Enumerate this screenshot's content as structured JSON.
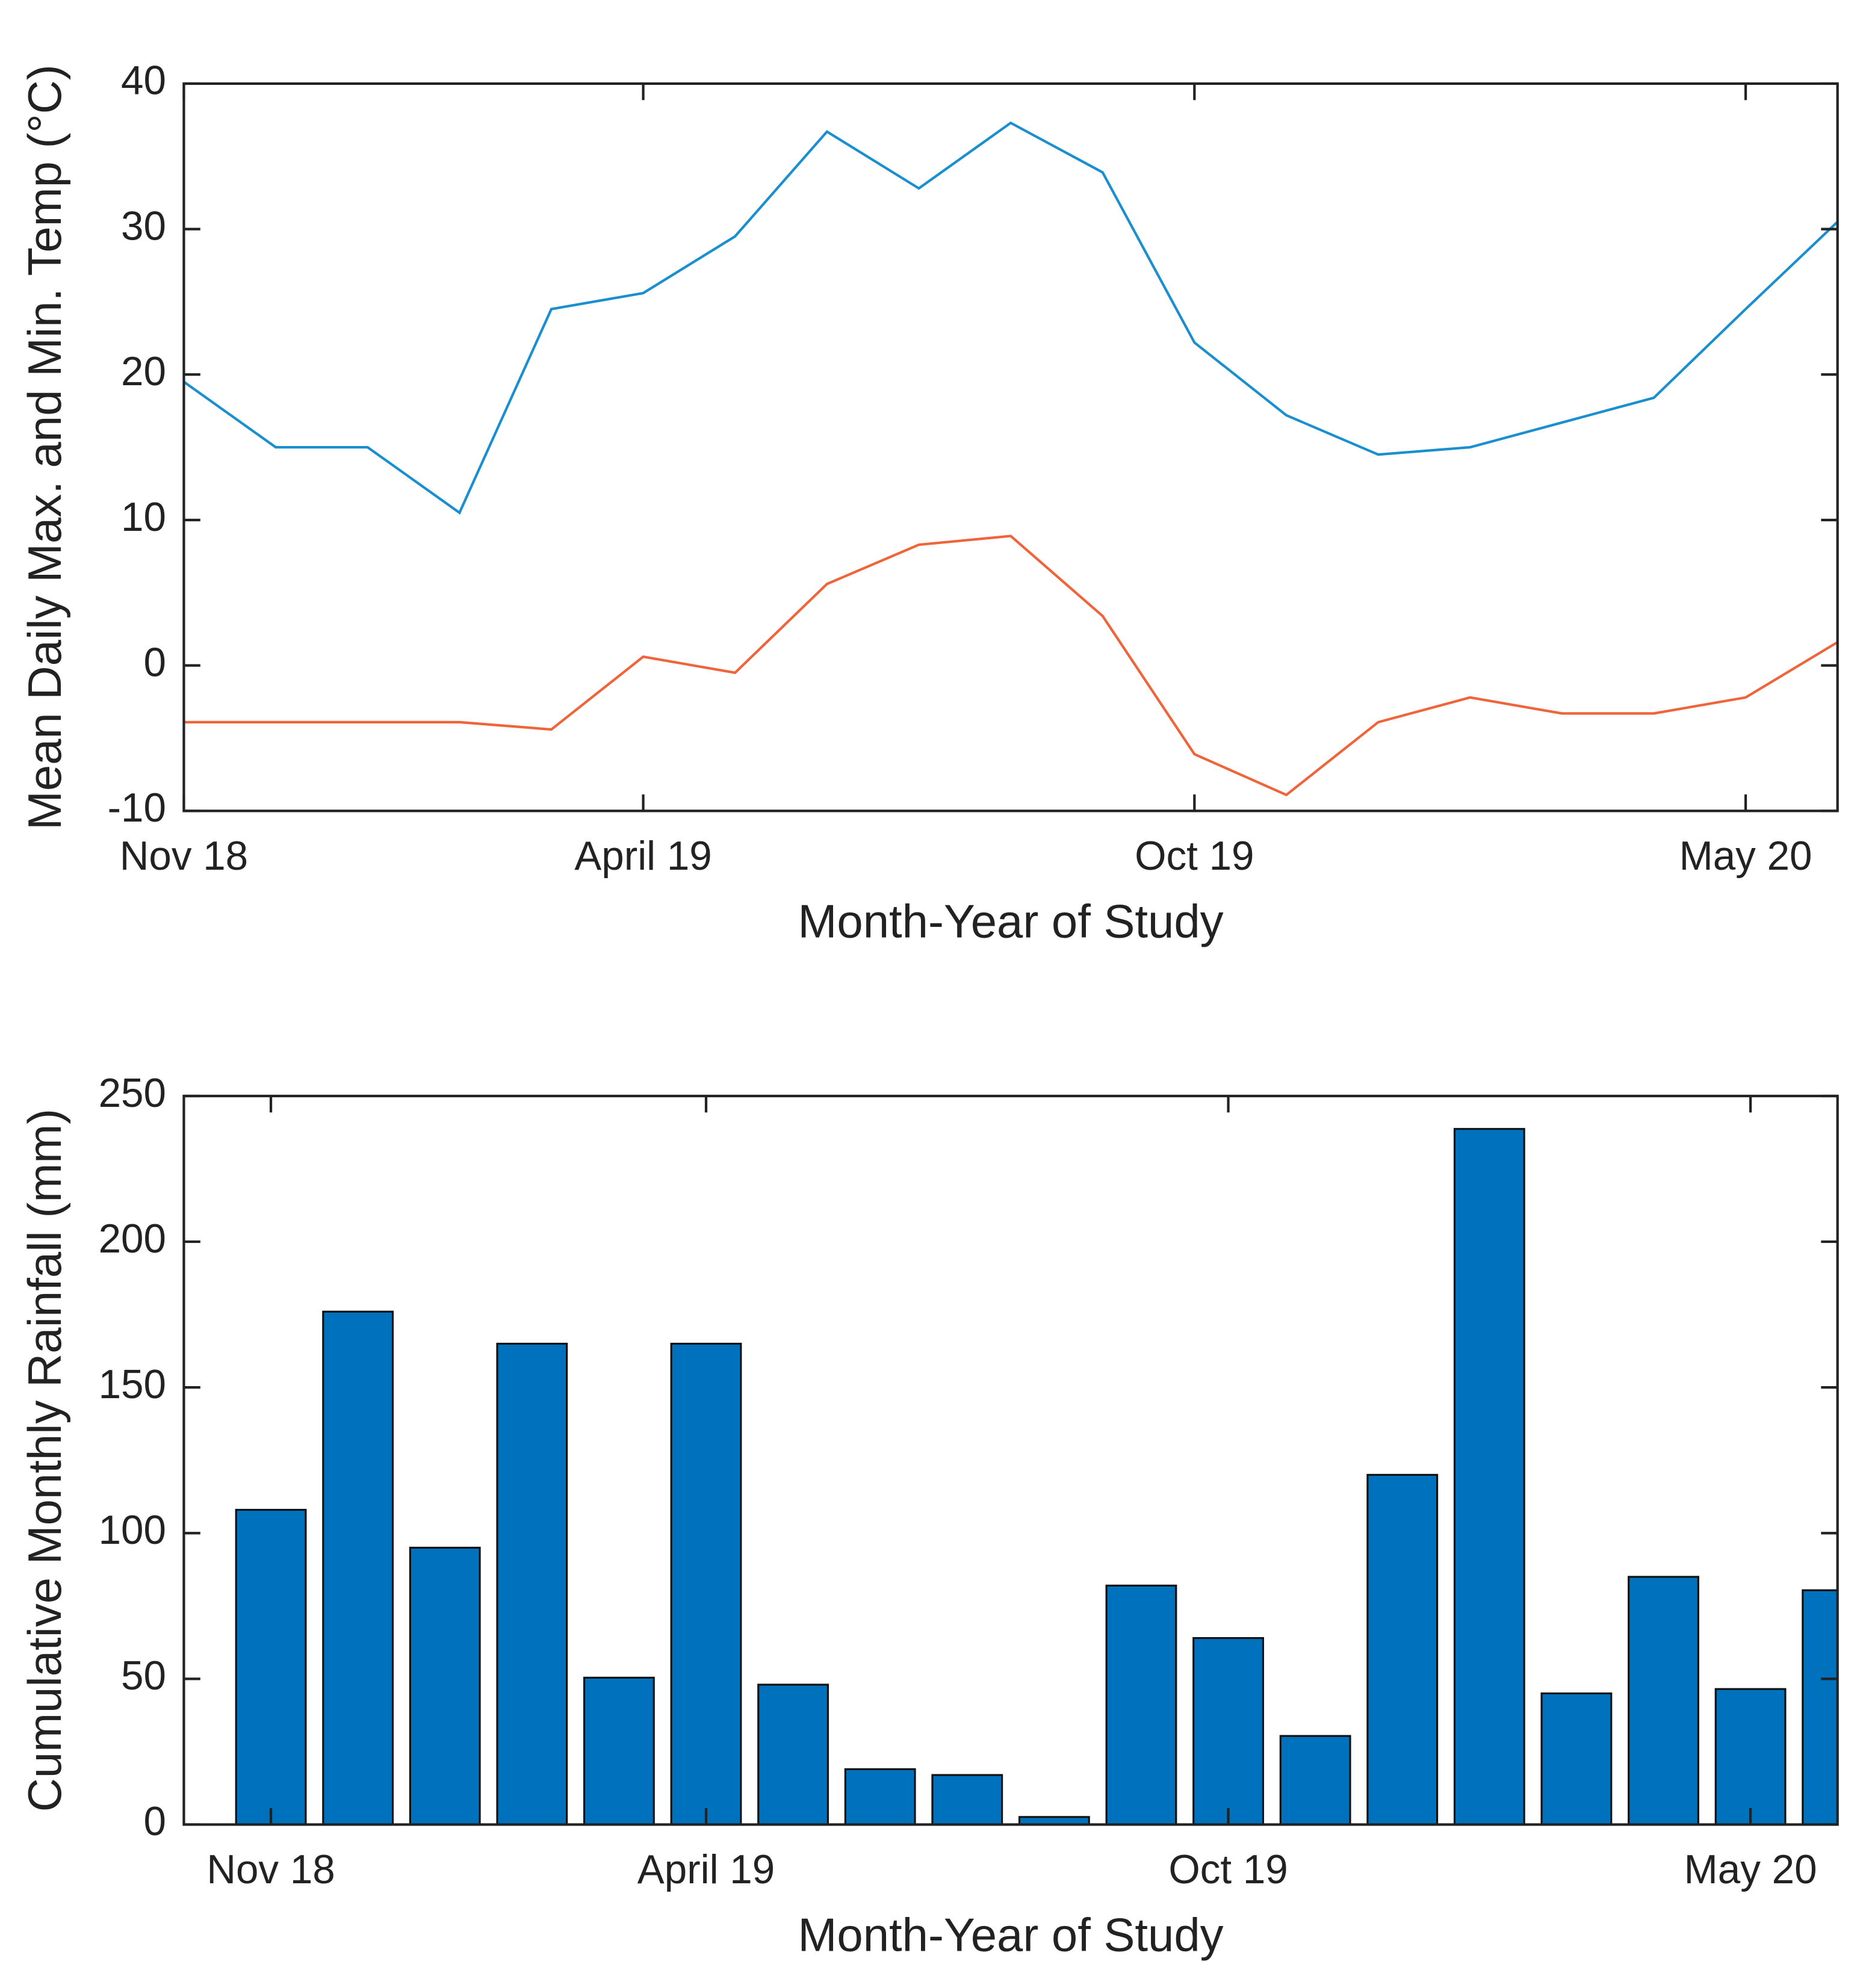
{
  "chart_data": [
    {
      "type": "line",
      "y_label": "Mean Daily Max. and Min. Temp (°C)",
      "x_label": "Month-Year of Study",
      "categories": [
        "Nov 18",
        null,
        null,
        null,
        null,
        "April 19",
        null,
        null,
        null,
        null,
        null,
        "Oct 19",
        null,
        null,
        null,
        null,
        null,
        "May 20",
        null
      ],
      "series": [
        {
          "color": "#1a8fd0",
          "values": [
            19.5,
            15,
            15,
            10.5,
            24.5,
            25.6,
            29.5,
            36.7,
            32.8,
            37.3,
            33.9,
            22.2,
            17.2,
            14.5,
            15,
            16.7,
            18.4,
            24.5,
            30.5
          ]
        },
        {
          "color": "#f0643a",
          "values": [
            -3.9,
            -3.9,
            -3.9,
            -3.9,
            -4.4,
            0.6,
            -0.5,
            5.6,
            8.3,
            8.9,
            3.4,
            -6.1,
            -8.9,
            -3.9,
            -2.2,
            -3.3,
            -3.3,
            -2.2,
            1.6
          ]
        }
      ],
      "ylim": [
        -10,
        40
      ],
      "yticks": [
        -10,
        0,
        10,
        20,
        30,
        40
      ]
    },
    {
      "type": "bar",
      "y_label": "Cumulative Monthly Rainfall (mm)",
      "x_label": "Month-Year of Study",
      "categories": [
        "Nov 18",
        null,
        null,
        null,
        null,
        "April 19",
        null,
        null,
        null,
        null,
        null,
        "Oct 19",
        null,
        null,
        null,
        null,
        null,
        "May 20",
        null
      ],
      "color": "#0072bd",
      "values": [
        108,
        176,
        95,
        165,
        50.4,
        165,
        48,
        19,
        17,
        2.6,
        82,
        64,
        30.4,
        120,
        238.7,
        45,
        85,
        46.5,
        80.4
      ],
      "ylim": [
        0,
        250
      ],
      "yticks": [
        0,
        50,
        100,
        150,
        200,
        250
      ]
    }
  ]
}
